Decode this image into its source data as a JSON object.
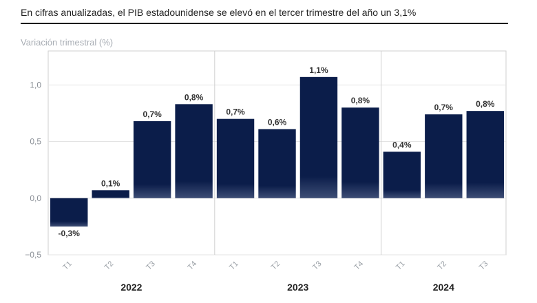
{
  "header": {
    "subtitle": "En cifras anualizadas, el PIB estadounidense se elevó en el tercer trimestre del año un 3,1%"
  },
  "chart_data": {
    "type": "bar",
    "ylabel": "Variación trimestral (%)",
    "ylim": [
      -0.5,
      1.3
    ],
    "yticks": [
      "−0,5",
      "0,0",
      "0,5",
      "1,0"
    ],
    "ytick_values": [
      -0.5,
      0.0,
      0.5,
      1.0
    ],
    "categories": [
      "T1",
      "T2",
      "T3",
      "T4",
      "T1",
      "T2",
      "T3",
      "T4",
      "T1",
      "T2",
      "T3"
    ],
    "values": [
      -0.25,
      0.07,
      0.68,
      0.83,
      0.7,
      0.61,
      1.07,
      0.8,
      0.41,
      0.74,
      0.77
    ],
    "data_labels": [
      "-0,3%",
      "0,1%",
      "0,7%",
      "0,8%",
      "0,7%",
      "0,6%",
      "1,1%",
      "0,8%",
      "0,4%",
      "0,7%",
      "0,8%"
    ],
    "groups": [
      {
        "label": "2022",
        "count": 4
      },
      {
        "label": "2023",
        "count": 4
      },
      {
        "label": "2024",
        "count": 3
      }
    ],
    "grid": true,
    "colors": {
      "bar": "#0b1d4a",
      "bar_highlight": "#4a5a80",
      "grid": "#e3e3e3",
      "plot_border": "#cfcfcf"
    }
  }
}
